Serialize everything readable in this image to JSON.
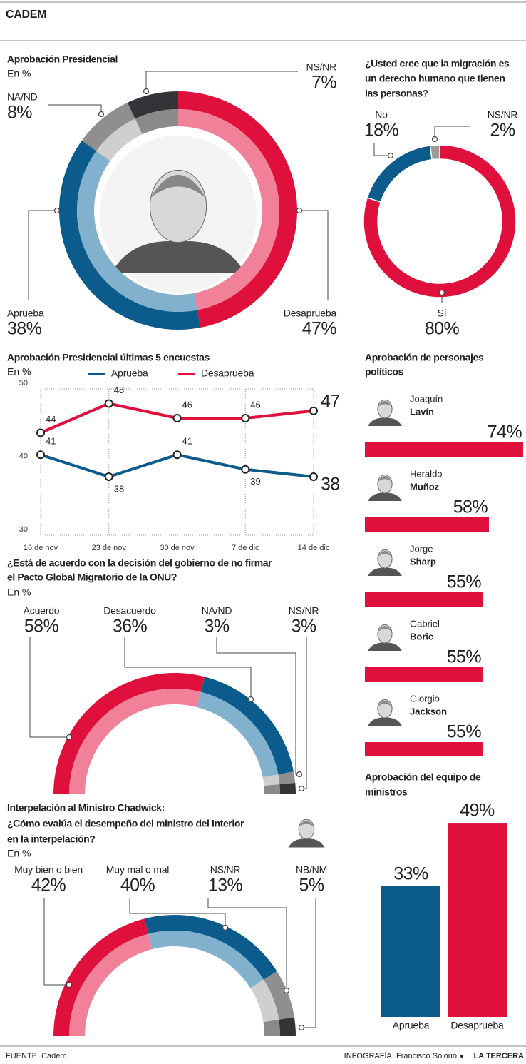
{
  "header": {
    "title": "CADEM"
  },
  "chart_data": [
    {
      "type": "donut",
      "title": [
        "Aprobación Presidencial"
      ],
      "subtitle": "En %",
      "categories": [
        "Desaprueba",
        "Aprueba",
        "NA/ND",
        "NS/NR"
      ],
      "values": [
        47,
        38,
        8,
        7
      ],
      "value_labels": [
        "47%",
        "38%",
        "8%",
        "7%"
      ],
      "colors": [
        "#e0103d",
        "#0b5b8d",
        "#8f8f8f",
        "#333338"
      ],
      "inner_colors": [
        "#f08198",
        "#82b1cd",
        "#cfcfcf",
        "#8a8a8a"
      ]
    },
    {
      "type": "donut",
      "title": [
        "¿Usted cree que la migración es",
        "un derecho humano que tienen",
        "las personas?"
      ],
      "categories": [
        "Sí",
        "No",
        "NS/NR"
      ],
      "values": [
        80,
        18,
        2
      ],
      "value_labels": [
        "80%",
        "18%",
        "2%"
      ],
      "colors": [
        "#e0103d",
        "#0b5b8d",
        "#9a9a9a"
      ]
    },
    {
      "type": "line",
      "title": [
        "Aprobación Presidencial últimas 5 encuestas"
      ],
      "subtitle": "En %",
      "categories": [
        "16 de nov",
        "23 de nov",
        "30 de nov",
        "7 de dic",
        "14 de dic"
      ],
      "series": [
        {
          "name": "Aprueba",
          "color": "#0b5b8d",
          "values": [
            41,
            38,
            41,
            39,
            38
          ]
        },
        {
          "name": "Desaprueba",
          "color": "#e0103d",
          "values": [
            44,
            48,
            46,
            46,
            47
          ]
        }
      ],
      "ylim": [
        30,
        50
      ],
      "yticks": [
        30,
        40,
        50
      ],
      "grid": true
    },
    {
      "type": "half-donut",
      "title": [
        "¿Está de acuerdo con la decisión del gobierno de no firmar",
        "el Pacto Global Migratorio de la ONU?"
      ],
      "subtitle": "En %",
      "categories": [
        "Acuerdo",
        "Desacuerdo",
        "NA/ND",
        "NS/NR"
      ],
      "values": [
        58,
        36,
        3,
        3
      ],
      "value_labels": [
        "58%",
        "36%",
        "3%",
        "3%"
      ],
      "colors": [
        "#e0103d",
        "#0b5b8d",
        "#8f8f8f",
        "#333338"
      ],
      "inner_colors": [
        "#f08198",
        "#82b1cd",
        "#cfcfcf",
        "#8a8a8a"
      ]
    },
    {
      "type": "half-donut",
      "title": [
        "Interpelación al Ministro Chadwick:",
        "¿Cómo evalúa el desempeño del ministro del Interior",
        "en la interpelación?"
      ],
      "subtitle": "En %",
      "categories": [
        "Muy bien o bien",
        "Muy mal o mal",
        "NS/NR",
        "NB/NM"
      ],
      "values": [
        42,
        40,
        13,
        5
      ],
      "value_labels": [
        "42%",
        "40%",
        "13%",
        "5%"
      ],
      "colors": [
        "#e0103d",
        "#0b5b8d",
        "#8f8f8f",
        "#333338"
      ],
      "inner_colors": [
        "#f08198",
        "#82b1cd",
        "#cfcfcf",
        "#8a8a8a"
      ]
    },
    {
      "type": "hbar",
      "title": [
        "Aprobación de personajes",
        "políticos"
      ],
      "categories": [
        [
          "Joaquín",
          "Lavín"
        ],
        [
          "Heraldo",
          "Muñoz"
        ],
        [
          "Jorge",
          "Sharp"
        ],
        [
          "Gabriel",
          "Boric"
        ],
        [
          "Giorgio",
          "Jackson"
        ]
      ],
      "values": [
        74,
        58,
        55,
        55,
        55
      ],
      "value_labels": [
        "74%",
        "58%",
        "55%",
        "55%",
        "55%"
      ],
      "color": "#e0103d"
    },
    {
      "type": "bar",
      "title": [
        "Aprobación del equipo de",
        "ministros"
      ],
      "categories": [
        "Aprueba",
        "Desaprueba"
      ],
      "values": [
        33,
        49
      ],
      "value_labels": [
        "33%",
        "49%"
      ],
      "colors": [
        "#0b5b8d",
        "#e0103d"
      ]
    }
  ],
  "footer": {
    "source": "FUENTE: Cadem",
    "credit": "INFOGRAFÍA: Francisco Solorio",
    "brand": "LA TERCERA"
  }
}
